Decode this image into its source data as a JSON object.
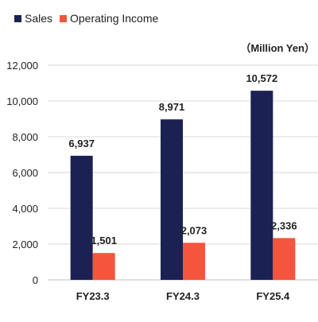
{
  "chart_data": {
    "type": "bar",
    "unit_label": "（Million Yen）",
    "categories": [
      "FY23.3",
      "FY24.3",
      "FY25.4"
    ],
    "series": [
      {
        "name": "Sales",
        "values": [
          6937,
          8971,
          10572
        ],
        "labels": [
          "6,937",
          "8,971",
          "10,572"
        ],
        "color": "#1b2253"
      },
      {
        "name": "Operating Income",
        "values": [
          1501,
          2073,
          2336
        ],
        "labels": [
          "1,501",
          "2,073",
          "2,336"
        ],
        "color": "#f4553c"
      }
    ],
    "ylim": [
      0,
      12000
    ],
    "yticks": [
      0,
      2000,
      4000,
      6000,
      8000,
      10000,
      12000
    ],
    "ytick_labels": [
      "0",
      "2,000",
      "4,000",
      "6,000",
      "8,000",
      "10,000",
      "12,000"
    ],
    "grid": true,
    "legend_position": "top-left"
  }
}
